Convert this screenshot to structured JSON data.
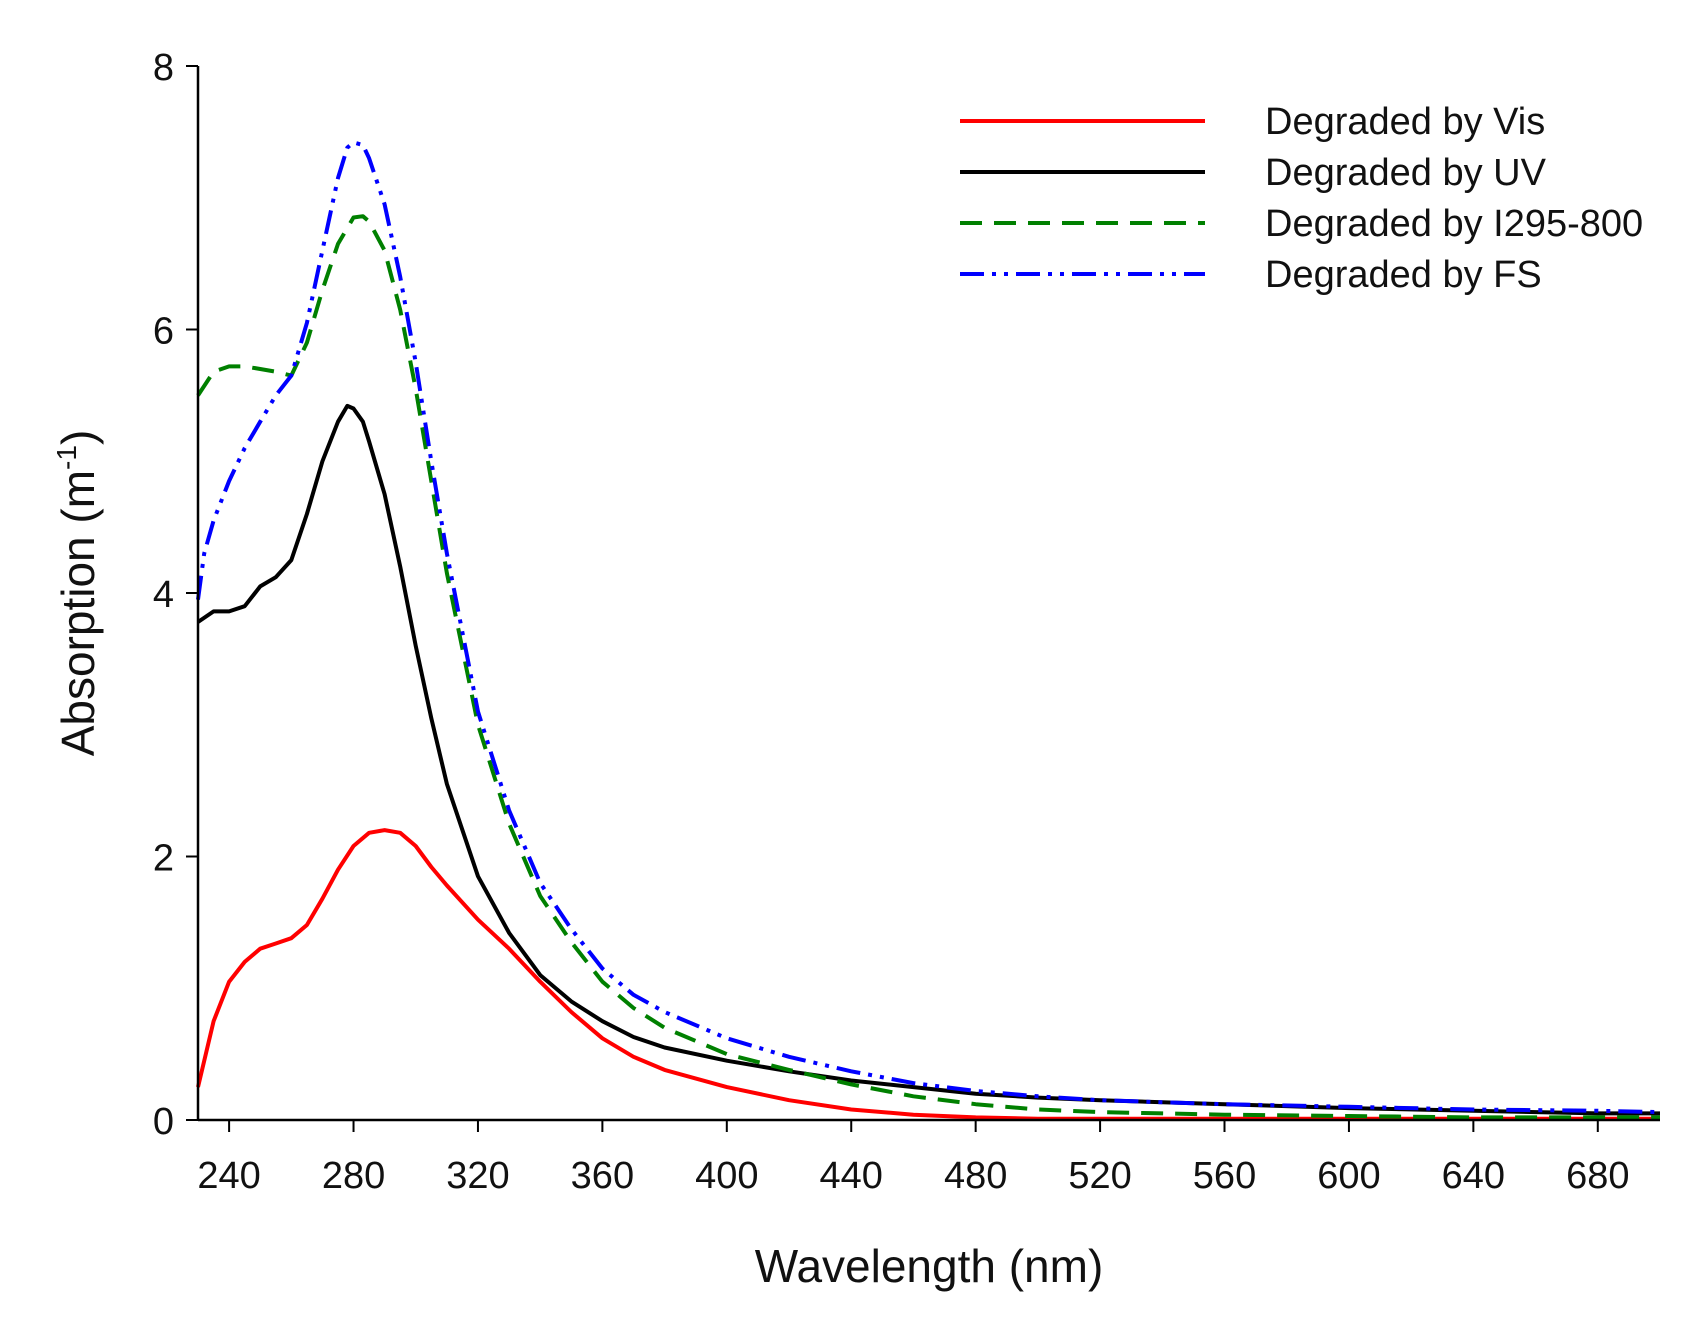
{
  "chart_data": {
    "type": "line",
    "title": "",
    "xlabel": "Wavelength (nm)",
    "ylabel_main": "Absorption (m",
    "ylabel_sup": "-1",
    "ylabel_close": ")",
    "xlim": [
      230,
      700
    ],
    "ylim": [
      0,
      8
    ],
    "xticks": [
      240,
      280,
      320,
      360,
      400,
      440,
      480,
      520,
      560,
      600,
      640,
      680
    ],
    "yticks": [
      0,
      2,
      4,
      6,
      8
    ],
    "xtick_labels": [
      "240",
      "280",
      "320",
      "360",
      "400",
      "440",
      "480",
      "520",
      "560",
      "600",
      "640",
      "680"
    ],
    "ytick_labels": [
      "0",
      "2",
      "4",
      "6",
      "8"
    ],
    "grid": false,
    "legend_position": "top-right",
    "series": [
      {
        "name": "Degraded by Vis",
        "color": "#ff0000",
        "dash": "solid",
        "x": [
          230,
          235,
          240,
          245,
          250,
          255,
          260,
          265,
          270,
          275,
          280,
          285,
          290,
          295,
          300,
          305,
          310,
          320,
          330,
          340,
          350,
          360,
          370,
          380,
          400,
          420,
          440,
          460,
          480,
          500,
          520,
          560,
          600,
          640,
          680,
          700
        ],
        "y": [
          0.25,
          0.75,
          1.05,
          1.2,
          1.3,
          1.34,
          1.38,
          1.48,
          1.68,
          1.9,
          2.08,
          2.18,
          2.2,
          2.18,
          2.08,
          1.92,
          1.78,
          1.52,
          1.3,
          1.05,
          0.82,
          0.62,
          0.48,
          0.38,
          0.25,
          0.15,
          0.08,
          0.04,
          0.02,
          0.01,
          0.01,
          0.01,
          0.01,
          0.01,
          0.01,
          0.01
        ]
      },
      {
        "name": "Degraded by UV",
        "color": "#000000",
        "dash": "solid",
        "x": [
          230,
          235,
          240,
          245,
          250,
          255,
          260,
          265,
          270,
          275,
          278,
          280,
          283,
          285,
          290,
          295,
          300,
          305,
          310,
          320,
          330,
          340,
          350,
          360,
          370,
          380,
          400,
          420,
          440,
          460,
          480,
          500,
          520,
          560,
          600,
          640,
          680,
          700
        ],
        "y": [
          3.78,
          3.86,
          3.86,
          3.9,
          4.05,
          4.12,
          4.25,
          4.6,
          5.0,
          5.3,
          5.42,
          5.4,
          5.3,
          5.15,
          4.75,
          4.2,
          3.6,
          3.05,
          2.55,
          1.85,
          1.42,
          1.1,
          0.9,
          0.75,
          0.63,
          0.55,
          0.45,
          0.37,
          0.3,
          0.25,
          0.2,
          0.17,
          0.15,
          0.12,
          0.09,
          0.07,
          0.05,
          0.05
        ]
      },
      {
        "name": "Degraded by I295-800",
        "color": "#008000",
        "dash": "dashed",
        "x": [
          230,
          235,
          240,
          245,
          250,
          255,
          260,
          265,
          270,
          275,
          280,
          283,
          285,
          290,
          295,
          300,
          305,
          310,
          320,
          330,
          340,
          350,
          360,
          370,
          380,
          400,
          420,
          440,
          460,
          480,
          500,
          520,
          560,
          600,
          640,
          680,
          700
        ],
        "y": [
          5.5,
          5.68,
          5.72,
          5.72,
          5.7,
          5.68,
          5.65,
          5.9,
          6.3,
          6.65,
          6.85,
          6.86,
          6.82,
          6.6,
          6.15,
          5.55,
          4.85,
          4.15,
          3.0,
          2.25,
          1.7,
          1.35,
          1.05,
          0.85,
          0.7,
          0.5,
          0.38,
          0.27,
          0.18,
          0.12,
          0.08,
          0.06,
          0.04,
          0.03,
          0.02,
          0.02,
          0.02
        ]
      },
      {
        "name": "Degraded by FS",
        "color": "#0000ff",
        "dash": "dash-dot-dot",
        "x": [
          230,
          232,
          235,
          240,
          245,
          250,
          255,
          260,
          265,
          270,
          275,
          278,
          280,
          283,
          285,
          290,
          295,
          300,
          305,
          310,
          320,
          330,
          340,
          350,
          360,
          370,
          380,
          400,
          420,
          440,
          460,
          480,
          500,
          520,
          560,
          600,
          640,
          680,
          700
        ],
        "y": [
          3.95,
          4.3,
          4.55,
          4.85,
          5.1,
          5.3,
          5.5,
          5.65,
          6.05,
          6.6,
          7.15,
          7.38,
          7.42,
          7.4,
          7.3,
          6.95,
          6.4,
          5.75,
          5.0,
          4.3,
          3.1,
          2.35,
          1.8,
          1.45,
          1.15,
          0.95,
          0.82,
          0.62,
          0.48,
          0.37,
          0.28,
          0.22,
          0.18,
          0.15,
          0.12,
          0.1,
          0.08,
          0.07,
          0.06
        ]
      }
    ]
  }
}
